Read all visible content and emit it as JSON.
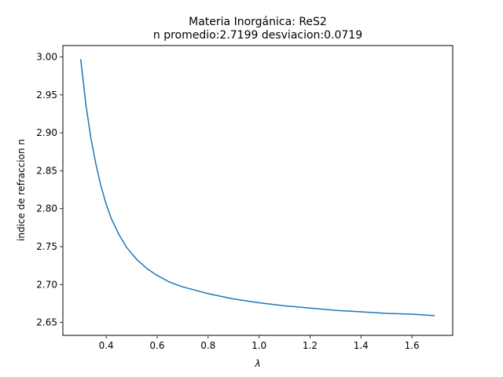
{
  "chart_data": {
    "type": "line",
    "title": "Materia Inorgánica: ReS2",
    "subtitle": "n promedio:2.7199 desviacion:0.0719",
    "xlabel": "λ",
    "ylabel": "indice de refraccion n",
    "xlim": [
      0.23,
      1.76
    ],
    "ylim": [
      2.633,
      3.015
    ],
    "xticks": [
      0.4,
      0.6,
      0.8,
      1.0,
      1.2,
      1.4,
      1.6
    ],
    "xtick_labels": [
      "0.4",
      "0.6",
      "0.8",
      "1.0",
      "1.2",
      "1.4",
      "1.6"
    ],
    "yticks": [
      2.65,
      2.7,
      2.75,
      2.8,
      2.85,
      2.9,
      2.95,
      3.0
    ],
    "ytick_labels": [
      "2.65",
      "2.70",
      "2.75",
      "2.80",
      "2.85",
      "2.90",
      "2.95",
      "3.00"
    ],
    "grid": false,
    "series": [
      {
        "color": "#1f77b4",
        "x": [
          0.3,
          0.32,
          0.34,
          0.36,
          0.38,
          0.4,
          0.42,
          0.45,
          0.48,
          0.52,
          0.56,
          0.6,
          0.65,
          0.7,
          0.8,
          0.9,
          1.0,
          1.1,
          1.2,
          1.3,
          1.4,
          1.5,
          1.6,
          1.69
        ],
        "y": [
          2.997,
          2.938,
          2.893,
          2.858,
          2.829,
          2.806,
          2.787,
          2.766,
          2.749,
          2.733,
          2.721,
          2.712,
          2.703,
          2.697,
          2.688,
          2.681,
          2.676,
          2.672,
          2.669,
          2.666,
          2.664,
          2.662,
          2.661,
          2.659
        ]
      }
    ]
  }
}
